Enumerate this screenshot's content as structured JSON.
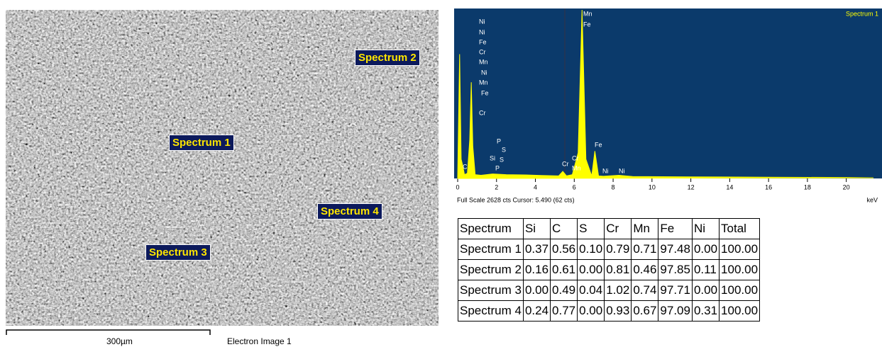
{
  "image": {
    "labels": [
      "Spectrum 1",
      "Spectrum 2",
      "Spectrum 3",
      "Spectrum 4"
    ],
    "scale_bar": "300µm",
    "caption": "Electron Image 1"
  },
  "chart_data": {
    "type": "line",
    "title": "Spectrum 1",
    "xlabel": "keV",
    "footer": "Full Scale 2628 cts Cursor: 5.490 (62 cts)",
    "x": [
      0,
      0.1,
      0.18,
      0.26,
      0.35,
      0.5,
      0.62,
      0.7,
      0.78,
      0.9,
      1.2,
      1.8,
      2.5,
      3.5,
      4.5,
      5.2,
      5.41,
      5.6,
      5.9,
      6.2,
      6.4,
      6.6,
      6.9,
      7.06,
      7.25,
      7.5,
      8.3,
      9,
      12,
      16,
      20,
      21.4
    ],
    "values": [
      0,
      1938,
      300,
      200,
      60,
      80,
      600,
      1500,
      500,
      60,
      50,
      70,
      60,
      55,
      45,
      40,
      110,
      40,
      60,
      400,
      2628,
      300,
      40,
      427,
      40,
      35,
      50,
      30,
      25,
      20,
      15,
      10
    ],
    "color": "#ffff00",
    "xlim": [
      0,
      21.4
    ],
    "ylim": [
      0,
      2628
    ],
    "xticks": [
      0,
      2,
      4,
      6,
      8,
      10,
      12,
      14,
      16,
      18,
      20
    ],
    "annotations": [
      "Ni",
      "Ni",
      "Fe",
      "Cr",
      "Mn",
      "Ni",
      "Mn",
      "Fe",
      "Cr",
      "C",
      "P",
      "S",
      "Si",
      "S",
      "P",
      "Cr",
      "Cr",
      "Mn",
      "Mn",
      "Fe",
      "Fe",
      "Ni",
      "Ni"
    ]
  },
  "table": {
    "header": [
      "Spectrum",
      "Si",
      "C",
      "S",
      "Cr",
      "Mn",
      "Fe",
      "Ni",
      "Total"
    ],
    "rows": [
      [
        "Spectrum 1",
        "0.37",
        "0.56",
        "0.10",
        "0.79",
        "0.71",
        "97.48",
        "0.00",
        "100.00"
      ],
      [
        "Spectrum 2",
        "0.16",
        "0.61",
        "0.00",
        "0.81",
        "0.46",
        "97.85",
        "0.11",
        "100.00"
      ],
      [
        "Spectrum 3",
        "0.00",
        "0.49",
        "0.04",
        "1.02",
        "0.74",
        "97.71",
        "0.00",
        "100.00"
      ],
      [
        "Spectrum 4",
        "0.24",
        "0.77",
        "0.00",
        "0.93",
        "0.67",
        "97.09",
        "0.31",
        "100.00"
      ]
    ]
  }
}
